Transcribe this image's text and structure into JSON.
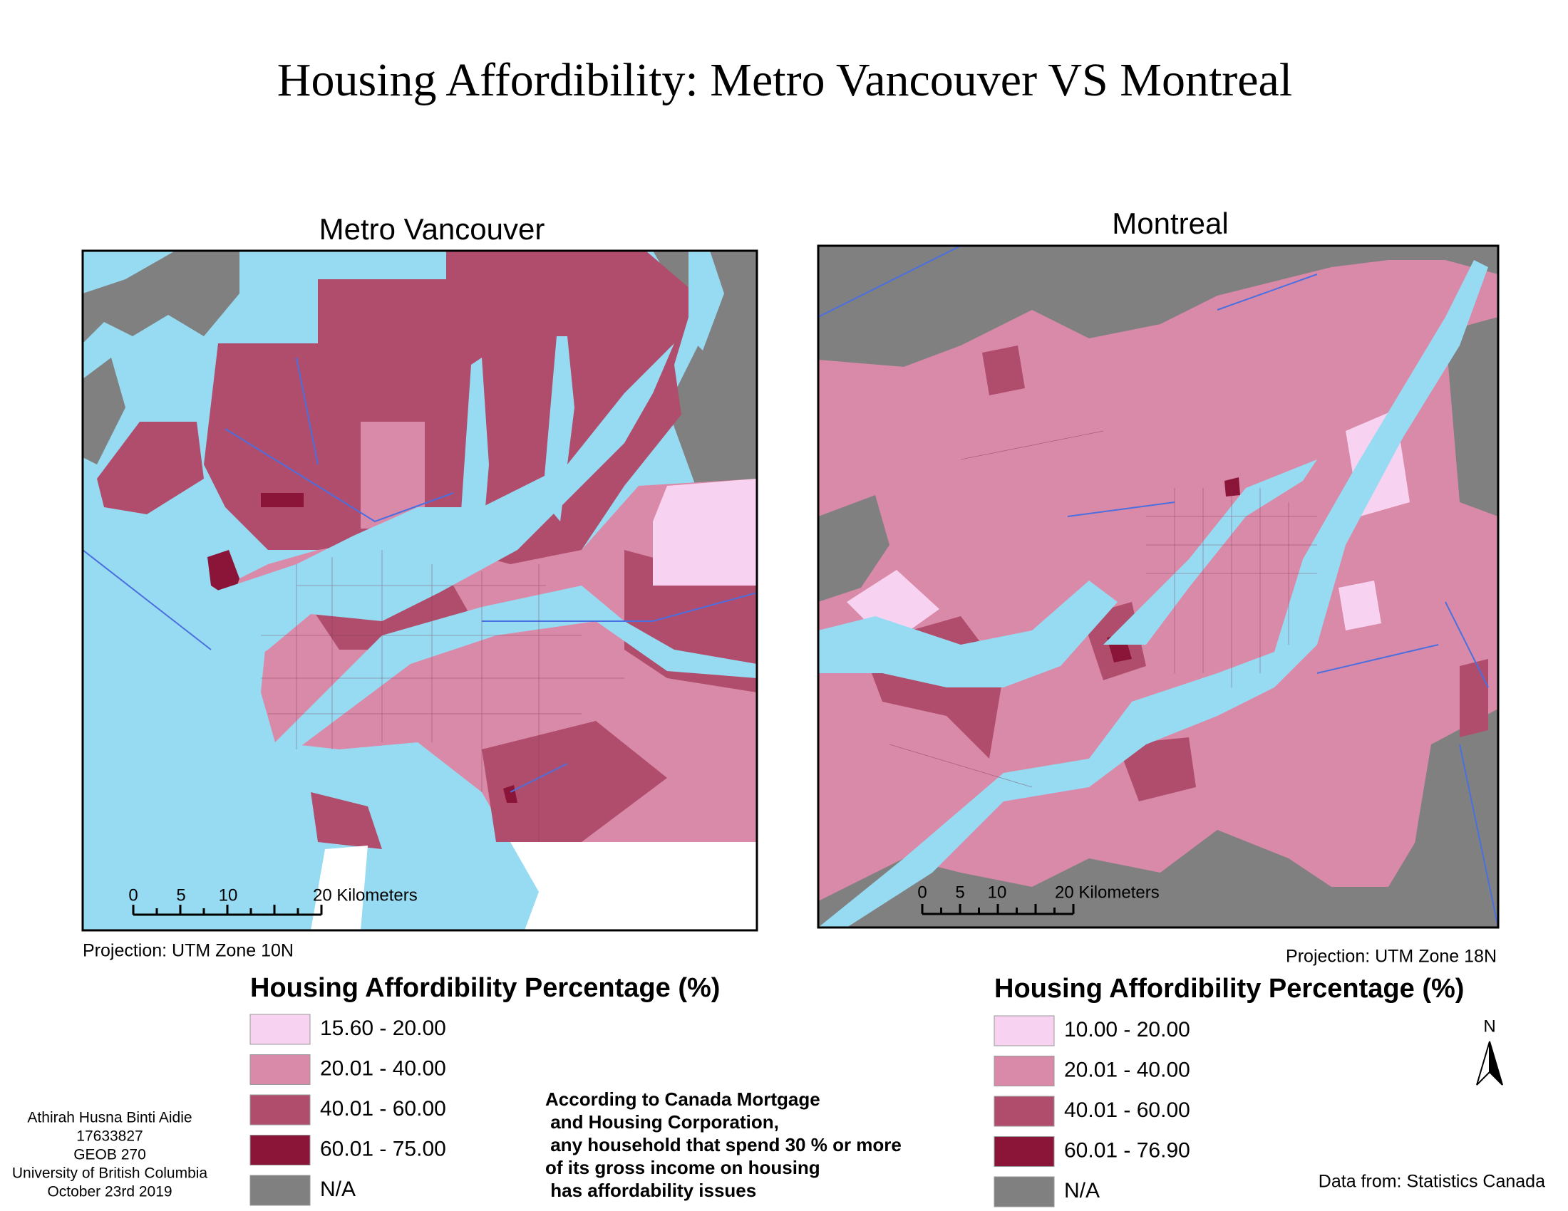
{
  "title": "Housing Affordibility: Metro Vancouver VS Montreal",
  "maps": [
    {
      "title": "Metro Vancouver",
      "projection": "Projection: UTM Zone 10N",
      "scale_labels": [
        "0",
        "5",
        "10",
        "20 Kilometers"
      ],
      "legend_title": "Housing Affordibility Percentage (%)",
      "legend": [
        {
          "label": "15.60 - 20.00",
          "color": "#f8d3f1"
        },
        {
          "label": "20.01 - 40.00",
          "color": "#d98aa8"
        },
        {
          "label": "40.01 - 60.00",
          "color": "#b14d6c"
        },
        {
          "label": "60.01 - 75.00",
          "color": "#8a1539"
        },
        {
          "label": "N/A",
          "color": "#808080"
        }
      ]
    },
    {
      "title": "Montreal",
      "projection": "Projection: UTM Zone 18N",
      "scale_labels": [
        "0",
        "5",
        "10",
        "20 Kilometers"
      ],
      "legend_title": "Housing Affordibility Percentage (%)",
      "legend": [
        {
          "label": "10.00 - 20.00",
          "color": "#f8d3f1"
        },
        {
          "label": "20.01 - 40.00",
          "color": "#d98aa8"
        },
        {
          "label": "40.01 - 60.00",
          "color": "#b14d6c"
        },
        {
          "label": "60.01 - 76.90",
          "color": "#8a1539"
        },
        {
          "label": "N/A",
          "color": "#808080"
        }
      ]
    }
  ],
  "north": "N",
  "author": [
    "Athirah Husna Binti Aidie",
    "17633827",
    "GEOB 270",
    "University of British Columbia",
    "October 23rd 2019"
  ],
  "note": [
    "According to Canada Mortgage",
    " and Housing Corporation,",
    " any household that spend 30 % or more",
    "of its gross income on housing",
    " has affordability issues"
  ],
  "source": "Data from: Statistics Canada"
}
